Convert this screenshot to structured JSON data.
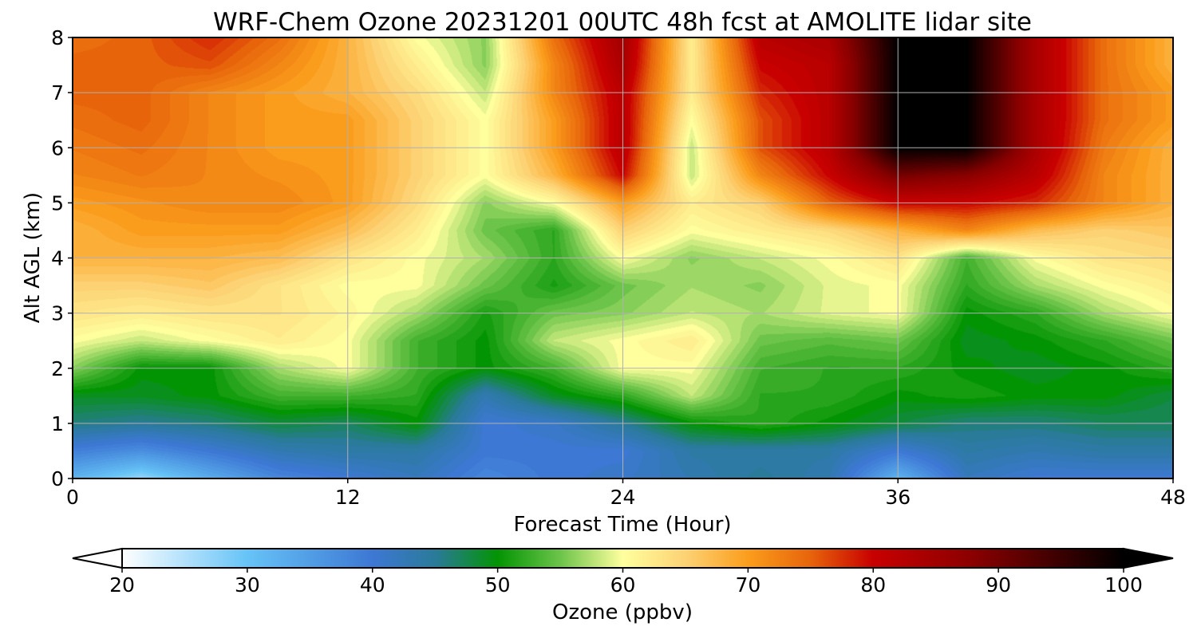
{
  "chart_data": {
    "type": "heatmap",
    "title": "WRF-Chem Ozone  20231201 00UTC 48h fcst at AMOLITE lidar site",
    "xlabel": "Forecast Time (Hour)",
    "ylabel": "Alt AGL (km)",
    "xlim": [
      0,
      48
    ],
    "ylim": [
      0,
      8
    ],
    "x_ticks": [
      "0",
      "12",
      "24",
      "36",
      "48"
    ],
    "y_ticks": [
      "0",
      "1",
      "2",
      "3",
      "4",
      "5",
      "6",
      "7",
      "8"
    ],
    "grid": true,
    "x_hours": [
      0,
      3,
      6,
      9,
      12,
      15,
      18,
      21,
      24,
      27,
      30,
      33,
      36,
      39,
      42,
      45,
      48
    ],
    "z_km": [
      0.0,
      0.5,
      1.0,
      1.5,
      2.0,
      2.5,
      3.0,
      3.5,
      4.0,
      4.5,
      5.0,
      5.5,
      6.0,
      6.5,
      7.0,
      7.5,
      8.0
    ],
    "ozone_ppbv": [
      [
        32,
        27,
        33,
        38,
        40,
        42,
        38,
        40,
        41,
        43,
        45,
        43,
        32,
        42,
        40,
        40,
        40
      ],
      [
        39,
        37,
        40,
        43,
        44,
        44,
        40,
        40,
        40,
        44,
        44,
        44,
        40,
        44,
        43,
        44,
        44
      ],
      [
        46,
        45,
        46,
        48,
        47,
        50,
        40,
        41,
        45,
        50,
        52,
        50,
        48,
        46,
        46,
        47,
        47
      ],
      [
        49,
        49,
        50,
        53,
        53,
        52,
        43,
        49,
        52,
        58,
        52,
        52,
        50,
        51,
        50,
        50,
        48
      ],
      [
        56,
        50,
        50,
        57,
        60,
        53,
        50,
        53,
        60,
        60,
        53,
        52,
        52,
        50,
        49,
        50,
        52
      ],
      [
        60,
        58,
        60,
        62,
        60,
        53,
        50,
        58,
        60,
        62,
        55,
        54,
        55,
        49,
        50,
        52,
        55
      ],
      [
        63,
        62,
        63,
        63,
        61,
        57,
        51,
        55,
        56,
        58,
        57,
        59,
        60,
        50,
        52,
        57,
        60
      ],
      [
        65,
        65,
        66,
        63,
        60,
        60,
        55,
        51,
        55,
        57,
        56,
        59,
        60,
        52,
        57,
        60,
        62
      ],
      [
        68,
        68,
        68,
        67,
        63,
        60,
        57,
        52,
        60,
        56,
        58,
        60,
        63,
        53,
        60,
        63,
        64
      ],
      [
        68,
        70,
        70,
        70,
        67,
        62,
        55,
        52,
        65,
        60,
        62,
        64,
        68,
        72,
        67,
        65,
        66
      ],
      [
        70,
        71,
        72,
        72,
        70,
        64,
        56,
        60,
        70,
        62,
        65,
        75,
        80,
        80,
        78,
        72,
        68
      ],
      [
        72,
        73,
        72,
        71,
        70,
        65,
        60,
        68,
        80,
        58,
        72,
        80,
        90,
        88,
        82,
        72,
        68
      ],
      [
        73,
        74,
        72,
        70,
        70,
        65,
        60,
        70,
        82,
        58,
        76,
        82,
        100,
        100,
        84,
        73,
        68
      ],
      [
        74,
        75,
        72,
        70,
        70,
        65,
        60,
        70,
        82,
        60,
        76,
        82,
        100,
        100,
        84,
        74,
        70
      ],
      [
        75,
        75,
        72,
        70,
        68,
        64,
        58,
        72,
        82,
        62,
        78,
        82,
        100,
        100,
        84,
        74,
        70
      ],
      [
        75,
        75,
        76,
        72,
        68,
        62,
        56,
        72,
        84,
        62,
        80,
        82,
        100,
        100,
        84,
        74,
        68
      ],
      [
        74,
        75,
        78,
        74,
        68,
        60,
        56,
        74,
        85,
        62,
        82,
        84,
        100,
        100,
        84,
        74,
        68
      ]
    ],
    "colorbar": {
      "label": "Ozone  (ppbv)",
      "range": [
        20,
        100
      ],
      "ticks": [
        "20",
        "30",
        "40",
        "50",
        "60",
        "70",
        "80",
        "90",
        "100"
      ],
      "extend": "both",
      "stops": [
        {
          "v": 20,
          "c": "#ffffff"
        },
        {
          "v": 30,
          "c": "#66c3f7"
        },
        {
          "v": 40,
          "c": "#3d78d4"
        },
        {
          "v": 45,
          "c": "#2a7a9a"
        },
        {
          "v": 50,
          "c": "#039403"
        },
        {
          "v": 55,
          "c": "#6cc44a"
        },
        {
          "v": 60,
          "c": "#ffff9e"
        },
        {
          "v": 65,
          "c": "#fcd274"
        },
        {
          "v": 70,
          "c": "#fb9d1c"
        },
        {
          "v": 75,
          "c": "#e7640b"
        },
        {
          "v": 80,
          "c": "#c80000"
        },
        {
          "v": 88,
          "c": "#8a0000"
        },
        {
          "v": 100,
          "c": "#000000"
        }
      ]
    }
  }
}
